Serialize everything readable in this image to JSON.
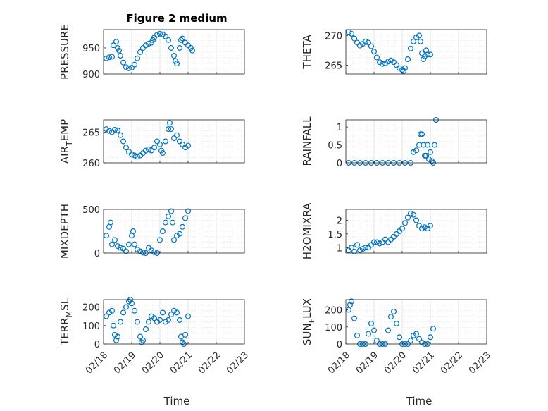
{
  "figure": {
    "title": "Figure 2 medium",
    "xlabel": "Time",
    "marker_color": "#0072BD"
  },
  "chart_data": [
    {
      "type": "scatter",
      "name": "PRESSURE",
      "ylabel": "PRESSURE",
      "xlim": [
        0,
        5
      ],
      "ylim": [
        900,
        985
      ],
      "yticks": [
        900,
        950
      ],
      "ytick_labels": [
        "900",
        "950"
      ],
      "xtick_labels": [
        "02/18",
        "02/19",
        "02/20",
        "02/21",
        "02/22",
        "02/23"
      ],
      "points": [
        [
          0.1,
          930
        ],
        [
          0.2,
          932
        ],
        [
          0.3,
          933
        ],
        [
          0.35,
          955
        ],
        [
          0.45,
          962
        ],
        [
          0.5,
          950
        ],
        [
          0.55,
          945
        ],
        [
          0.6,
          935
        ],
        [
          0.7,
          922
        ],
        [
          0.8,
          913
        ],
        [
          0.9,
          911
        ],
        [
          1.0,
          912
        ],
        [
          1.1,
          918
        ],
        [
          1.2,
          930
        ],
        [
          1.3,
          942
        ],
        [
          1.4,
          950
        ],
        [
          1.5,
          955
        ],
        [
          1.6,
          958
        ],
        [
          1.7,
          960
        ],
        [
          1.75,
          965
        ],
        [
          1.8,
          970
        ],
        [
          1.9,
          975
        ],
        [
          2.0,
          977
        ],
        [
          2.1,
          976
        ],
        [
          2.2,
          972
        ],
        [
          2.3,
          965
        ],
        [
          2.4,
          950
        ],
        [
          2.5,
          935
        ],
        [
          2.55,
          925
        ],
        [
          2.6,
          920
        ],
        [
          2.7,
          950
        ],
        [
          2.75,
          965
        ],
        [
          2.8,
          968
        ],
        [
          2.9,
          960
        ],
        [
          3.0,
          955
        ],
        [
          3.1,
          950
        ],
        [
          3.15,
          945
        ]
      ]
    },
    {
      "type": "scatter",
      "name": "THETA",
      "ylabel": "THETA",
      "xlim": [
        0,
        5
      ],
      "ylim": [
        263.5,
        271
      ],
      "yticks": [
        265,
        270
      ],
      "ytick_labels": [
        "265",
        "270"
      ],
      "xtick_labels": [
        "02/18",
        "02/19",
        "02/20",
        "02/21",
        "02/22",
        "02/23"
      ],
      "points": [
        [
          0.1,
          270.6
        ],
        [
          0.2,
          270.3
        ],
        [
          0.3,
          269.5
        ],
        [
          0.4,
          268.8
        ],
        [
          0.5,
          268.3
        ],
        [
          0.6,
          268.6
        ],
        [
          0.7,
          269
        ],
        [
          0.8,
          268.8
        ],
        [
          0.9,
          268.2
        ],
        [
          1.0,
          267.3
        ],
        [
          1.1,
          266.3
        ],
        [
          1.2,
          265.5
        ],
        [
          1.3,
          265.2
        ],
        [
          1.4,
          265.3
        ],
        [
          1.5,
          265.6
        ],
        [
          1.6,
          265.8
        ],
        [
          1.7,
          265.5
        ],
        [
          1.8,
          265
        ],
        [
          1.9,
          264.5
        ],
        [
          2.0,
          264.2
        ],
        [
          2.05,
          264.0
        ],
        [
          2.1,
          264.5
        ],
        [
          2.2,
          266
        ],
        [
          2.3,
          267.8
        ],
        [
          2.4,
          269
        ],
        [
          2.5,
          269.7
        ],
        [
          2.6,
          270
        ],
        [
          2.65,
          269
        ],
        [
          2.7,
          267
        ],
        [
          2.75,
          266
        ],
        [
          2.8,
          266.5
        ],
        [
          2.85,
          267.5
        ],
        [
          2.9,
          266.8
        ],
        [
          3.0,
          266.8
        ]
      ]
    },
    {
      "type": "scatter",
      "name": "AIR_TEMP",
      "ylabel": "AIR_TEMP",
      "ylabel_main": "AIR",
      "ylabel_sub": "T",
      "ylabel_rest": "EMP",
      "xlim": [
        0,
        5
      ],
      "ylim": [
        260,
        267
      ],
      "yticks": [
        260,
        265
      ],
      "ytick_labels": [
        "260",
        "265"
      ],
      "xtick_labels": [
        "02/18",
        "02/19",
        "02/20",
        "02/21",
        "02/22",
        "02/23"
      ],
      "points": [
        [
          0.1,
          265.5
        ],
        [
          0.2,
          265.2
        ],
        [
          0.3,
          265
        ],
        [
          0.4,
          265.4
        ],
        [
          0.5,
          265.3
        ],
        [
          0.6,
          264.5
        ],
        [
          0.7,
          263.5
        ],
        [
          0.8,
          262.5
        ],
        [
          0.9,
          261.8
        ],
        [
          1.0,
          261.4
        ],
        [
          1.1,
          261.2
        ],
        [
          1.2,
          261
        ],
        [
          1.3,
          261.2
        ],
        [
          1.4,
          261.6
        ],
        [
          1.5,
          262
        ],
        [
          1.6,
          262.2
        ],
        [
          1.7,
          262
        ],
        [
          1.8,
          262.5
        ],
        [
          1.9,
          263.5
        ],
        [
          2.0,
          263
        ],
        [
          2.05,
          262
        ],
        [
          2.1,
          261.6
        ],
        [
          2.2,
          263.5
        ],
        [
          2.3,
          265.5
        ],
        [
          2.35,
          266.5
        ],
        [
          2.4,
          265.5
        ],
        [
          2.5,
          264
        ],
        [
          2.6,
          264.5
        ],
        [
          2.7,
          263.5
        ],
        [
          2.8,
          263
        ],
        [
          2.9,
          262.5
        ],
        [
          3.0,
          262.8
        ]
      ]
    },
    {
      "type": "scatter",
      "name": "RAINFALL",
      "ylabel": "RAINFALL",
      "xlim": [
        0,
        5
      ],
      "ylim": [
        0,
        1.2
      ],
      "yticks": [
        0,
        0.5,
        1
      ],
      "ytick_labels": [
        "0",
        "0.5",
        "1"
      ],
      "xtick_labels": [
        "02/18",
        "02/19",
        "02/20",
        "02/21",
        "02/22",
        "02/23"
      ],
      "points": [
        [
          0.1,
          0
        ],
        [
          0.3,
          0
        ],
        [
          0.5,
          0
        ],
        [
          0.7,
          0
        ],
        [
          0.9,
          0
        ],
        [
          1.1,
          0
        ],
        [
          1.3,
          0
        ],
        [
          1.5,
          0
        ],
        [
          1.7,
          0
        ],
        [
          1.9,
          0
        ],
        [
          2.1,
          0
        ],
        [
          2.3,
          0
        ],
        [
          2.4,
          0.3
        ],
        [
          2.5,
          0.35
        ],
        [
          2.6,
          0.5
        ],
        [
          2.65,
          0.8
        ],
        [
          2.7,
          0.8
        ],
        [
          2.75,
          0.5
        ],
        [
          2.8,
          0.2
        ],
        [
          2.85,
          0.2
        ],
        [
          2.9,
          0.5
        ],
        [
          2.95,
          0.1
        ],
        [
          3.0,
          0.3
        ],
        [
          3.05,
          0.05
        ],
        [
          3.1,
          0
        ],
        [
          3.15,
          0.5
        ],
        [
          3.2,
          1.2
        ]
      ]
    },
    {
      "type": "scatter",
      "name": "MIXDEPTH",
      "ylabel": "MIXDEPTH",
      "xlim": [
        0,
        5
      ],
      "ylim": [
        0,
        500
      ],
      "yticks": [
        0,
        500
      ],
      "ytick_labels": [
        "0",
        "500"
      ],
      "xtick_labels": [
        "02/18",
        "02/19",
        "02/20",
        "02/21",
        "02/22",
        "02/23"
      ],
      "points": [
        [
          0.1,
          200
        ],
        [
          0.2,
          300
        ],
        [
          0.25,
          350
        ],
        [
          0.3,
          100
        ],
        [
          0.4,
          150
        ],
        [
          0.5,
          80
        ],
        [
          0.6,
          60
        ],
        [
          0.7,
          50
        ],
        [
          0.8,
          20
        ],
        [
          0.9,
          100
        ],
        [
          1.0,
          200
        ],
        [
          1.05,
          250
        ],
        [
          1.1,
          100
        ],
        [
          1.2,
          40
        ],
        [
          1.3,
          20
        ],
        [
          1.4,
          5
        ],
        [
          1.5,
          0
        ],
        [
          1.6,
          60
        ],
        [
          1.7,
          30
        ],
        [
          1.8,
          10
        ],
        [
          1.9,
          0
        ],
        [
          2.0,
          150
        ],
        [
          2.1,
          250
        ],
        [
          2.2,
          350
        ],
        [
          2.3,
          420
        ],
        [
          2.4,
          480
        ],
        [
          2.45,
          350
        ],
        [
          2.5,
          150
        ],
        [
          2.6,
          200
        ],
        [
          2.7,
          220
        ],
        [
          2.8,
          300
        ],
        [
          2.9,
          400
        ],
        [
          3.0,
          480
        ]
      ]
    },
    {
      "type": "scatter",
      "name": "H2OMIXRA",
      "ylabel": "H2OMIXRA",
      "xlim": [
        0,
        5
      ],
      "ylim": [
        0.8,
        2.4
      ],
      "yticks": [
        1,
        1.5,
        2
      ],
      "ytick_labels": [
        "1",
        "1.5",
        "2"
      ],
      "xtick_labels": [
        "02/18",
        "02/19",
        "02/20",
        "02/21",
        "02/22",
        "02/23"
      ],
      "points": [
        [
          0.1,
          0.9
        ],
        [
          0.2,
          1.0
        ],
        [
          0.3,
          0.85
        ],
        [
          0.4,
          1.1
        ],
        [
          0.5,
          0.9
        ],
        [
          0.6,
          0.95
        ],
        [
          0.7,
          1.0
        ],
        [
          0.8,
          1.0
        ],
        [
          0.9,
          1.1
        ],
        [
          1.0,
          1.2
        ],
        [
          1.1,
          1.2
        ],
        [
          1.2,
          1.15
        ],
        [
          1.3,
          1.2
        ],
        [
          1.4,
          1.3
        ],
        [
          1.5,
          1.2
        ],
        [
          1.6,
          1.3
        ],
        [
          1.7,
          1.4
        ],
        [
          1.8,
          1.5
        ],
        [
          1.9,
          1.6
        ],
        [
          2.0,
          1.7
        ],
        [
          2.1,
          1.9
        ],
        [
          2.2,
          2.1
        ],
        [
          2.3,
          2.25
        ],
        [
          2.4,
          2.2
        ],
        [
          2.5,
          2.0
        ],
        [
          2.6,
          1.8
        ],
        [
          2.7,
          1.7
        ],
        [
          2.8,
          1.75
        ],
        [
          2.9,
          1.7
        ],
        [
          3.0,
          1.8
        ]
      ]
    },
    {
      "type": "scatter",
      "name": "TERR_MSL",
      "ylabel": "TERR_MSL",
      "ylabel_main": "TERR",
      "ylabel_sub": "M",
      "ylabel_rest": "SL",
      "xlim": [
        0,
        5
      ],
      "ylim": [
        0,
        240
      ],
      "yticks": [
        0,
        100,
        200
      ],
      "ytick_labels": [
        "0",
        "100",
        "200"
      ],
      "xtick_labels": [
        "02/18",
        "02/19",
        "02/20",
        "02/21",
        "02/22",
        "02/23"
      ],
      "points": [
        [
          0.1,
          150
        ],
        [
          0.2,
          170
        ],
        [
          0.3,
          180
        ],
        [
          0.35,
          100
        ],
        [
          0.4,
          50
        ],
        [
          0.45,
          20
        ],
        [
          0.5,
          40
        ],
        [
          0.6,
          120
        ],
        [
          0.7,
          170
        ],
        [
          0.8,
          200
        ],
        [
          0.9,
          230
        ],
        [
          0.95,
          240
        ],
        [
          1.0,
          220
        ],
        [
          1.1,
          180
        ],
        [
          1.2,
          120
        ],
        [
          1.3,
          40
        ],
        [
          1.35,
          10
        ],
        [
          1.4,
          20
        ],
        [
          1.5,
          80
        ],
        [
          1.6,
          120
        ],
        [
          1.7,
          150
        ],
        [
          1.8,
          140
        ],
        [
          1.9,
          120
        ],
        [
          2.0,
          130
        ],
        [
          2.1,
          170
        ],
        [
          2.2,
          120
        ],
        [
          2.3,
          130
        ],
        [
          2.4,
          160
        ],
        [
          2.5,
          180
        ],
        [
          2.6,
          170
        ],
        [
          2.7,
          130
        ],
        [
          2.75,
          40
        ],
        [
          2.8,
          10
        ],
        [
          2.85,
          0
        ],
        [
          2.9,
          50
        ],
        [
          3.0,
          150
        ]
      ]
    },
    {
      "type": "scatter",
      "name": "SUN_FLUX",
      "ylabel": "SUN_FLUX",
      "ylabel_main": "SUN",
      "ylabel_sub": "F",
      "ylabel_rest": "LUX",
      "xlim": [
        0,
        5
      ],
      "ylim": [
        0,
        260
      ],
      "yticks": [
        0,
        100,
        200
      ],
      "ytick_labels": [
        "0",
        "100",
        "200"
      ],
      "xtick_labels": [
        "02/18",
        "02/19",
        "02/20",
        "02/21",
        "02/22",
        "02/23"
      ],
      "points": [
        [
          0.1,
          200
        ],
        [
          0.15,
          230
        ],
        [
          0.2,
          250
        ],
        [
          0.3,
          150
        ],
        [
          0.4,
          50
        ],
        [
          0.5,
          0
        ],
        [
          0.6,
          0
        ],
        [
          0.7,
          0
        ],
        [
          0.8,
          60
        ],
        [
          0.9,
          120
        ],
        [
          1.0,
          80
        ],
        [
          1.1,
          20
        ],
        [
          1.2,
          0
        ],
        [
          1.3,
          0
        ],
        [
          1.4,
          0
        ],
        [
          1.5,
          80
        ],
        [
          1.6,
          160
        ],
        [
          1.7,
          190
        ],
        [
          1.8,
          120
        ],
        [
          1.9,
          40
        ],
        [
          2.0,
          0
        ],
        [
          2.1,
          0
        ],
        [
          2.2,
          0
        ],
        [
          2.3,
          20
        ],
        [
          2.4,
          50
        ],
        [
          2.5,
          60
        ],
        [
          2.6,
          30
        ],
        [
          2.7,
          10
        ],
        [
          2.8,
          0
        ],
        [
          2.9,
          0
        ],
        [
          3.0,
          40
        ],
        [
          3.1,
          90
        ]
      ]
    }
  ]
}
